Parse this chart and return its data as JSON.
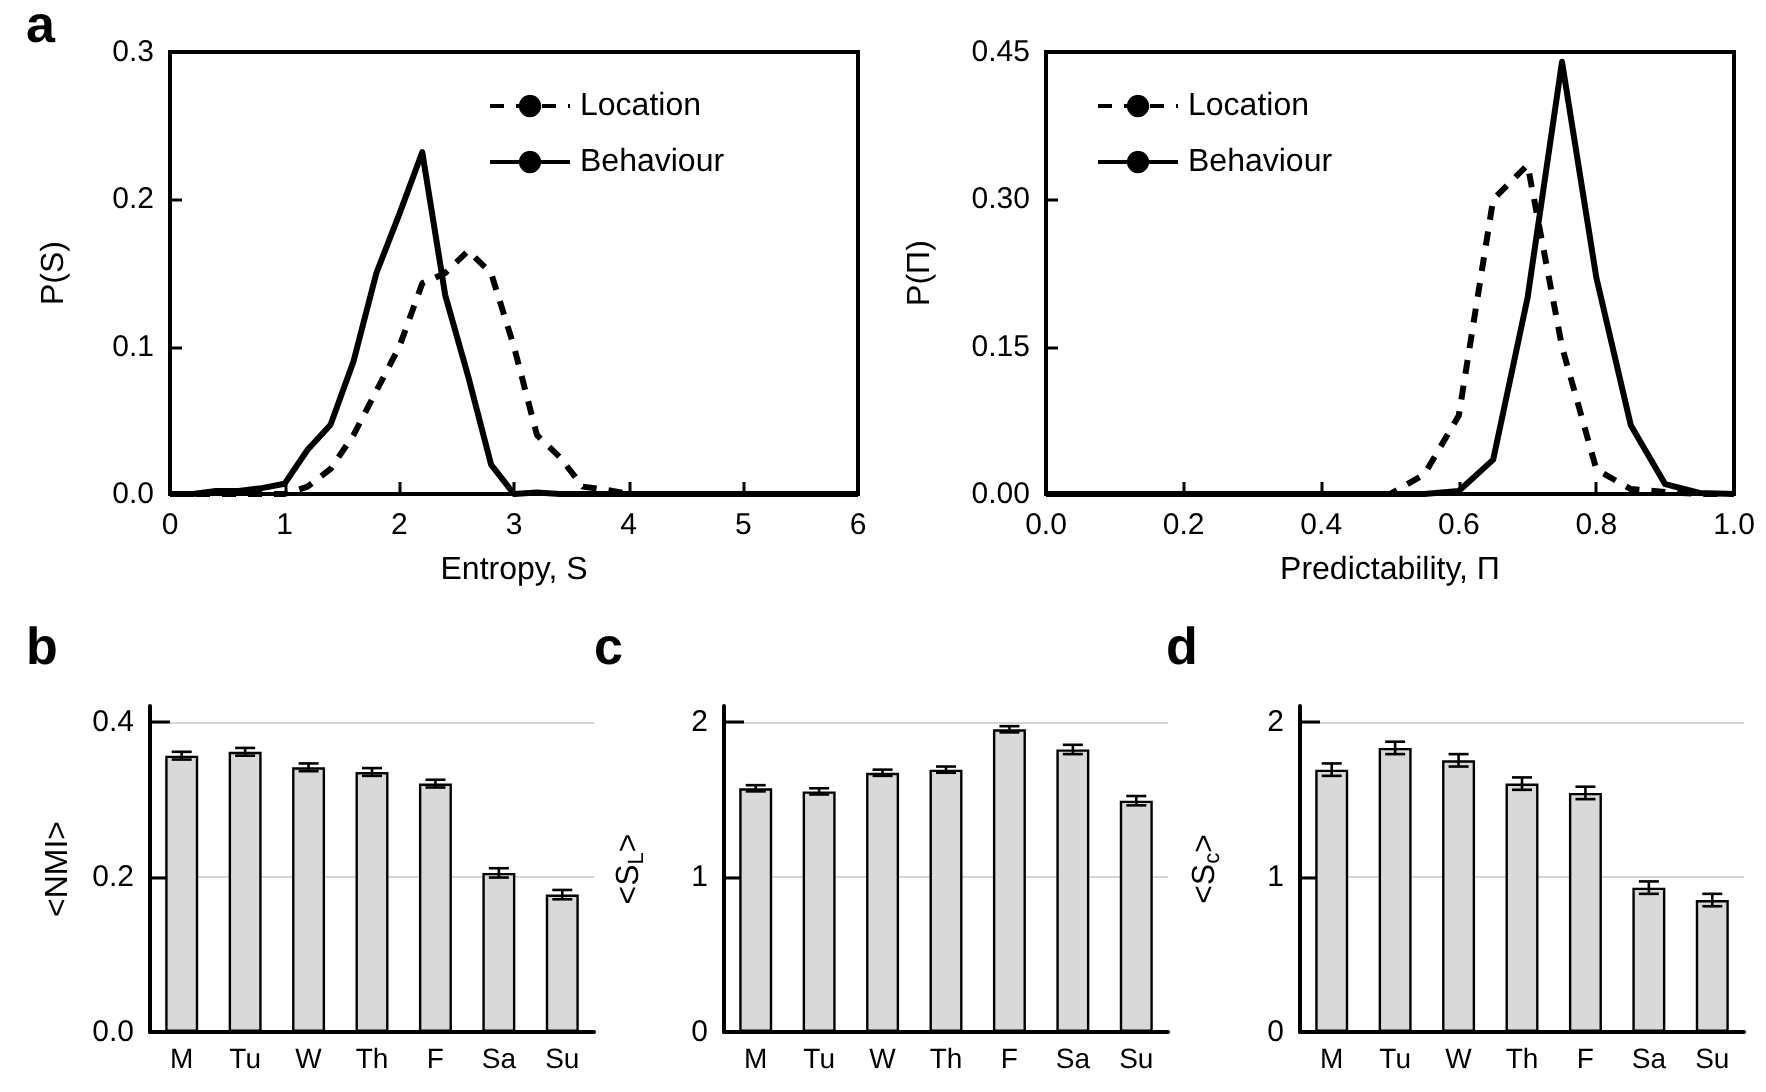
{
  "chart_data": [
    {
      "type": "line",
      "title": "a",
      "xlabel": "Entropy, S",
      "ylabel": "P(S)",
      "xlim": [
        0,
        6
      ],
      "xticks": [
        0,
        1,
        2,
        3,
        4,
        5,
        6
      ],
      "ylim": [
        0,
        0.3
      ],
      "yticks": [
        {
          "value": 0,
          "label": "0.0"
        },
        {
          "value": 0.1,
          "label": "0.1"
        },
        {
          "value": 0.2,
          "label": "0.2"
        },
        {
          "value": 0.3,
          "label": "0.3"
        }
      ],
      "grid": false,
      "legend": "top right",
      "marker": "none",
      "series": [
        {
          "name": "Location",
          "color": "#000000",
          "line_style": "dashed",
          "x": [
            0,
            0.2,
            0.4,
            0.6,
            0.8,
            1.0,
            1.2,
            1.4,
            1.6,
            1.8,
            2.0,
            2.2,
            2.4,
            2.6,
            2.8,
            3.0,
            3.2,
            3.4,
            3.6,
            3.8,
            4.0,
            4.5,
            5.0,
            5.5,
            6.0
          ],
          "values": [
            0,
            0,
            0,
            0,
            0,
            0,
            0.005,
            0.017,
            0.04,
            0.07,
            0.1,
            0.143,
            0.15,
            0.165,
            0.15,
            0.1,
            0.04,
            0.025,
            0.005,
            0.003,
            0,
            0,
            0,
            0,
            0
          ]
        },
        {
          "name": "Behaviour",
          "color": "#000000",
          "line_style": "solid",
          "x": [
            0,
            0.2,
            0.4,
            0.6,
            0.8,
            1.0,
            1.2,
            1.4,
            1.6,
            1.8,
            2.0,
            2.2,
            2.4,
            2.6,
            2.8,
            3.0,
            3.2,
            3.4,
            3.6,
            4.0,
            4.5,
            5.0,
            5.5,
            6.0
          ],
          "values": [
            0,
            0,
            0.002,
            0.002,
            0.004,
            0.007,
            0.03,
            0.047,
            0.09,
            0.15,
            0.19,
            0.232,
            0.135,
            0.08,
            0.02,
            0,
            0.001,
            0,
            0,
            0,
            0,
            0,
            0,
            0
          ]
        }
      ]
    },
    {
      "type": "line",
      "xlabel": "Predictability, Π",
      "ylabel": "P(Π)",
      "xlim": [
        0,
        1
      ],
      "xticks": [
        {
          "value": 0,
          "label": "0.0"
        },
        {
          "value": 0.2,
          "label": "0.2"
        },
        {
          "value": 0.4,
          "label": "0.4"
        },
        {
          "value": 0.6,
          "label": "0.6"
        },
        {
          "value": 0.8,
          "label": "0.8"
        },
        {
          "value": 1,
          "label": "1.0"
        }
      ],
      "ylim": [
        0,
        0.45
      ],
      "yticks": [
        {
          "value": 0,
          "label": "0.00"
        },
        {
          "value": 0.15,
          "label": "0.15"
        },
        {
          "value": 0.3,
          "label": "0.30"
        },
        {
          "value": 0.45,
          "label": "0.45"
        }
      ],
      "grid": false,
      "legend": "top left",
      "marker": "none",
      "series": [
        {
          "name": "Location",
          "color": "#000000",
          "line_style": "dashed",
          "x": [
            0,
            0.1,
            0.2,
            0.3,
            0.4,
            0.5,
            0.55,
            0.6,
            0.65,
            0.7,
            0.75,
            0.8,
            0.85,
            0.9,
            0.95,
            1.0
          ],
          "values": [
            0,
            0,
            0,
            0,
            0,
            0,
            0.02,
            0.08,
            0.3,
            0.335,
            0.15,
            0.025,
            0.005,
            0.002,
            0,
            0
          ]
        },
        {
          "name": "Behaviour",
          "color": "#000000",
          "line_style": "solid",
          "x": [
            0,
            0.1,
            0.2,
            0.3,
            0.4,
            0.5,
            0.55,
            0.6,
            0.65,
            0.7,
            0.75,
            0.8,
            0.85,
            0.9,
            0.95,
            1.0
          ],
          "values": [
            0,
            0,
            0,
            0,
            0,
            0,
            0,
            0.003,
            0.035,
            0.2,
            0.44,
            0.22,
            0.07,
            0.01,
            0.001,
            0
          ]
        }
      ]
    },
    {
      "type": "bar",
      "title": "b",
      "ylabel": "<NMI>",
      "categories": [
        "M",
        "Tu",
        "W",
        "Th",
        "F",
        "Sa",
        "Su"
      ],
      "ylim": [
        0,
        0.42
      ],
      "yticks": [
        {
          "value": 0,
          "label": "0.0"
        },
        {
          "value": 0.2,
          "label": "0.2"
        },
        {
          "value": 0.4,
          "label": "0.4"
        }
      ],
      "grid": "y",
      "color": "#d9d9d9",
      "values": [
        0.356,
        0.361,
        0.341,
        0.335,
        0.32,
        0.205,
        0.177
      ],
      "errors": [
        0.005,
        0.005,
        0.005,
        0.005,
        0.005,
        0.006,
        0.006
      ]
    },
    {
      "type": "bar",
      "title": "c",
      "ylabel": "<S$_{L}$>",
      "categories": [
        "M",
        "Tu",
        "W",
        "Th",
        "F",
        "Sa",
        "Su"
      ],
      "ylim": [
        0,
        2.1
      ],
      "yticks": [
        0,
        1,
        2
      ],
      "grid": "y",
      "color": "#d9d9d9",
      "values": [
        1.57,
        1.55,
        1.67,
        1.69,
        1.95,
        1.82,
        1.49
      ],
      "errors": [
        0.02,
        0.02,
        0.02,
        0.02,
        0.02,
        0.03,
        0.03
      ]
    },
    {
      "type": "bar",
      "title": "d",
      "ylabel": "<S$_{c}$>",
      "categories": [
        "M",
        "Tu",
        "W",
        "Th",
        "F",
        "Sa",
        "Su"
      ],
      "ylim": [
        0,
        2.1
      ],
      "yticks": [
        0,
        1,
        2
      ],
      "grid": "y",
      "color": "#d9d9d9",
      "values": [
        1.69,
        1.83,
        1.75,
        1.6,
        1.54,
        0.93,
        0.85
      ],
      "errors": [
        0.04,
        0.04,
        0.04,
        0.04,
        0.04,
        0.04,
        0.04
      ]
    }
  ]
}
